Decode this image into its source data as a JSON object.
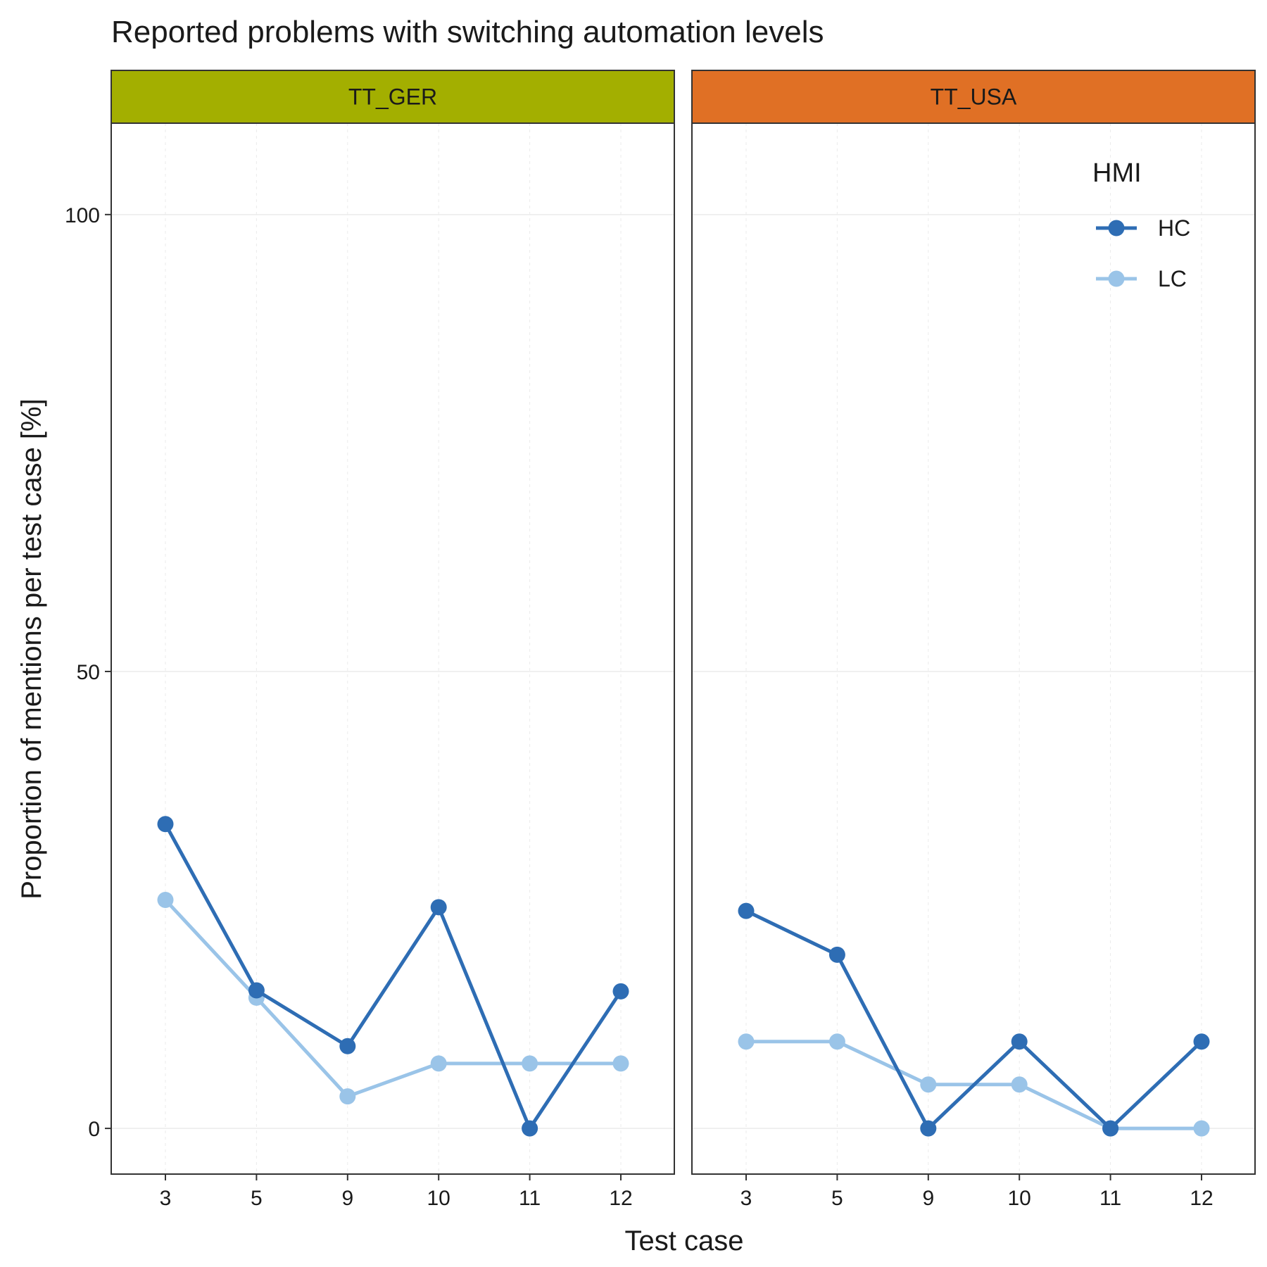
{
  "chart_data": {
    "type": "line",
    "title": "Reported problems with switching automation levels",
    "xlabel": "Test case",
    "ylabel": "Proportion of mentions per test case [%]",
    "categories": [
      "3",
      "5",
      "9",
      "10",
      "11",
      "12"
    ],
    "ylim": [
      -5,
      110
    ],
    "yticks": [
      0,
      50,
      100
    ],
    "grid": true,
    "legend": {
      "title": "HMI",
      "position": "top-right inside TT_USA panel",
      "entries": [
        {
          "name": "HC",
          "color": "#2E6DB4"
        },
        {
          "name": "LC",
          "color": "#9AC4E8"
        }
      ]
    },
    "panels": [
      {
        "label": "TT_GER",
        "strip_color": "#A3AF00",
        "series": [
          {
            "name": "HC",
            "color": "#2E6DB4",
            "values": [
              33.3,
              15.1,
              9.0,
              24.2,
              0,
              15.0
            ]
          },
          {
            "name": "LC",
            "color": "#9AC4E8",
            "values": [
              25.0,
              14.3,
              3.5,
              7.1,
              7.1,
              7.1
            ]
          }
        ]
      },
      {
        "label": "TT_USA",
        "strip_color": "#E07025",
        "series": [
          {
            "name": "HC",
            "color": "#2E6DB4",
            "values": [
              23.8,
              19.0,
              0,
              9.5,
              0,
              9.5
            ]
          },
          {
            "name": "LC",
            "color": "#9AC4E8",
            "values": [
              9.5,
              9.5,
              4.8,
              4.8,
              0,
              0
            ]
          }
        ]
      }
    ]
  }
}
